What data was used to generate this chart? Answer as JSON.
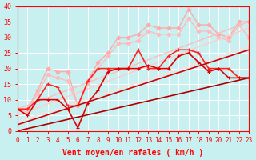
{
  "xlabel": "Vent moyen/en rafales ( km/h )",
  "xlim": [
    0,
    23
  ],
  "ylim": [
    0,
    40
  ],
  "bg_color": "#c8f0f0",
  "grid_color": "#ffffff",
  "lines": [
    {
      "x": [
        0,
        1,
        2,
        3,
        4,
        5,
        6,
        7,
        8,
        9,
        10,
        11,
        12,
        13,
        14,
        15,
        16,
        17,
        18,
        19,
        20,
        21,
        22,
        23
      ],
      "y": [
        7,
        7,
        13,
        20,
        19,
        19,
        8,
        16,
        22,
        25,
        30,
        30,
        31,
        34,
        33,
        33,
        33,
        39,
        34,
        34,
        31,
        30,
        35,
        35
      ],
      "color": "#ffaaaa",
      "lw": 1.0,
      "marker": "D",
      "ms": 2.5
    },
    {
      "x": [
        0,
        1,
        2,
        3,
        4,
        5,
        6,
        7,
        8,
        9,
        10,
        11,
        12,
        13,
        14,
        15,
        16,
        17,
        18,
        19,
        20,
        21,
        22,
        23
      ],
      "y": [
        7,
        6,
        12,
        18,
        17,
        16,
        8,
        15,
        20,
        24,
        28,
        28,
        29,
        32,
        31,
        31,
        31,
        36,
        32,
        32,
        30,
        29,
        34,
        30
      ],
      "color": "#ffbbbb",
      "lw": 1.0,
      "marker": "D",
      "ms": 2.5
    },
    {
      "x": [
        0,
        23
      ],
      "y": [
        7,
        35
      ],
      "color": "#ffbbbb",
      "lw": 1.0,
      "marker": null,
      "ms": 0
    },
    {
      "x": [
        0,
        23
      ],
      "y": [
        5,
        33
      ],
      "color": "#ffcccc",
      "lw": 1.0,
      "marker": null,
      "ms": 0
    },
    {
      "x": [
        0,
        23
      ],
      "y": [
        3,
        27
      ],
      "color": "#ffdddd",
      "lw": 1.0,
      "marker": null,
      "ms": 0
    },
    {
      "x": [
        0,
        1,
        2,
        3,
        4,
        5,
        6,
        7,
        8,
        9,
        10,
        11,
        12,
        13,
        14,
        15,
        16,
        17,
        18,
        19,
        20,
        21,
        22,
        23
      ],
      "y": [
        7,
        7,
        10,
        15,
        14,
        8,
        8,
        16,
        20,
        20,
        20,
        20,
        26,
        20,
        20,
        24,
        26,
        26,
        25,
        20,
        20,
        20,
        17,
        17
      ],
      "color": "#ff2222",
      "lw": 1.2,
      "marker": "+",
      "ms": 3.5
    },
    {
      "x": [
        0,
        1,
        2,
        3,
        4,
        5,
        6,
        7,
        8,
        9,
        10,
        11,
        12,
        13,
        14,
        15,
        16,
        17,
        18,
        19,
        20,
        21,
        22,
        23
      ],
      "y": [
        7,
        5,
        10,
        10,
        10,
        7,
        1,
        9,
        13,
        19,
        20,
        20,
        20,
        21,
        20,
        20,
        24,
        25,
        22,
        19,
        20,
        17,
        17,
        17
      ],
      "color": "#dd0000",
      "lw": 1.2,
      "marker": "+",
      "ms": 3.5
    },
    {
      "x": [
        0,
        23
      ],
      "y": [
        2,
        26
      ],
      "color": "#cc0000",
      "lw": 1.2,
      "marker": null,
      "ms": 0
    },
    {
      "x": [
        0,
        23
      ],
      "y": [
        0,
        17
      ],
      "color": "#aa0000",
      "lw": 1.2,
      "marker": null,
      "ms": 0
    }
  ],
  "xtick_fontsize": 5.5,
  "ytick_fontsize": 6,
  "xlabel_fontsize": 7,
  "axis_color": "#ff0000",
  "tick_color": "#ff0000"
}
